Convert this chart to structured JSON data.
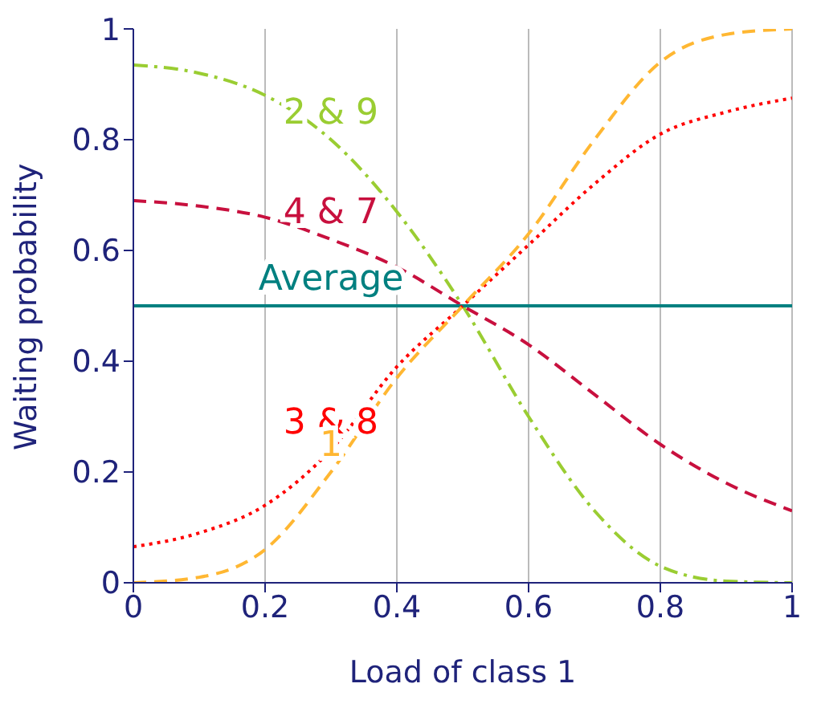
{
  "chart_data": {
    "type": "line",
    "xlabel": "Load of class 1",
    "ylabel": "Waiting probability",
    "x": [
      0,
      0.1,
      0.2,
      0.3,
      0.4,
      0.5,
      0.6,
      0.7,
      0.8,
      0.9,
      1
    ],
    "series": [
      {
        "name": "2 & 9",
        "color": "#9acd32",
        "line_style": "dashdot",
        "values": [
          0.935,
          0.92,
          0.88,
          0.8,
          0.67,
          0.5,
          0.3,
          0.13,
          0.03,
          0.003,
          0
        ]
      },
      {
        "name": "4 & 7",
        "color": "#c8103e",
        "line_style": "dashed",
        "values": [
          0.69,
          0.68,
          0.66,
          0.62,
          0.57,
          0.5,
          0.43,
          0.34,
          0.25,
          0.18,
          0.13
        ]
      },
      {
        "name": "Average",
        "color": "#008080",
        "line_style": "solid",
        "values": [
          0.5,
          0.5,
          0.5,
          0.5,
          0.5,
          0.5,
          0.5,
          0.5,
          0.5,
          0.5,
          0.5
        ]
      },
      {
        "name": "3 & 8",
        "color": "#ff0000",
        "line_style": "dotted",
        "values": [
          0.065,
          0.09,
          0.14,
          0.24,
          0.39,
          0.5,
          0.61,
          0.72,
          0.81,
          0.85,
          0.875
        ]
      },
      {
        "name": "1",
        "color": "#ffb732",
        "line_style": "dashed",
        "values": [
          0,
          0.01,
          0.06,
          0.2,
          0.37,
          0.5,
          0.63,
          0.8,
          0.94,
          0.99,
          1
        ]
      }
    ],
    "xlim": [
      0,
      1
    ],
    "ylim": [
      0,
      1
    ],
    "xticks": [
      0,
      0.2,
      0.4,
      0.6,
      0.8,
      1
    ],
    "yticks": [
      0,
      0.2,
      0.4,
      0.6,
      0.8,
      1
    ],
    "grid": "x",
    "legend": false,
    "marker": "none"
  }
}
